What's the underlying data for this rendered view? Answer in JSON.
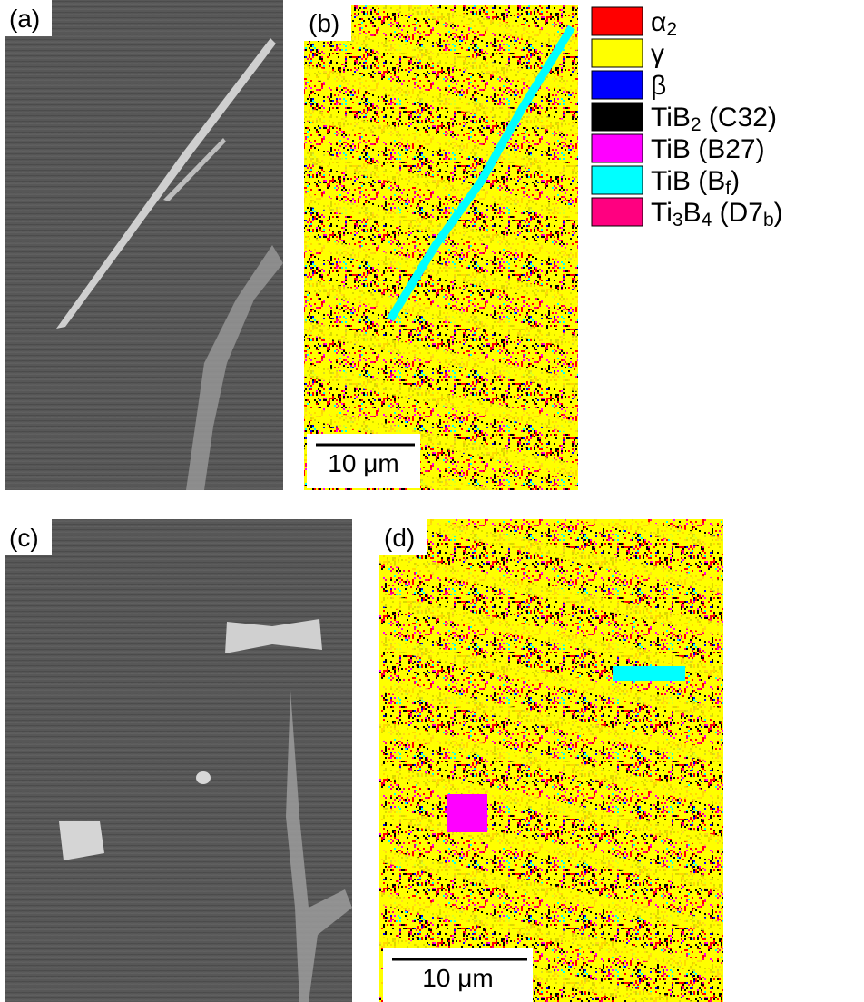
{
  "panels": [
    {
      "label": "(a)"
    },
    {
      "label": "(b)",
      "scale_bar": "10 μm"
    },
    {
      "label": "(c)"
    },
    {
      "label": "(d)",
      "scale_bar": "10 μm"
    }
  ],
  "legend": [
    {
      "color": "#ff0000",
      "label": [
        {
          "text": "α"
        },
        {
          "text": "2",
          "sub": true
        }
      ]
    },
    {
      "color": "#ffff00",
      "label": [
        {
          "text": "γ"
        }
      ]
    },
    {
      "color": "#0000ff",
      "label": [
        {
          "text": "β"
        }
      ]
    },
    {
      "color": "#000000",
      "label": [
        {
          "text": "TiB"
        },
        {
          "text": "2",
          "sub": true
        },
        {
          "text": " (C32)"
        }
      ]
    },
    {
      "color": "#ff00ff",
      "label": [
        {
          "text": "TiB (B27)"
        }
      ]
    },
    {
      "color": "#00ffff",
      "label": [
        {
          "text": "TiB (B"
        },
        {
          "text": "f",
          "sub": true
        },
        {
          "text": ")"
        }
      ]
    },
    {
      "color": "#ff0080",
      "label": [
        {
          "text": "Ti"
        },
        {
          "text": "3",
          "sub": true
        },
        {
          "text": "B"
        },
        {
          "text": "4",
          "sub": true
        },
        {
          "text": " (D7"
        },
        {
          "text": "b",
          "sub": true
        },
        {
          "text": ")"
        }
      ]
    }
  ]
}
